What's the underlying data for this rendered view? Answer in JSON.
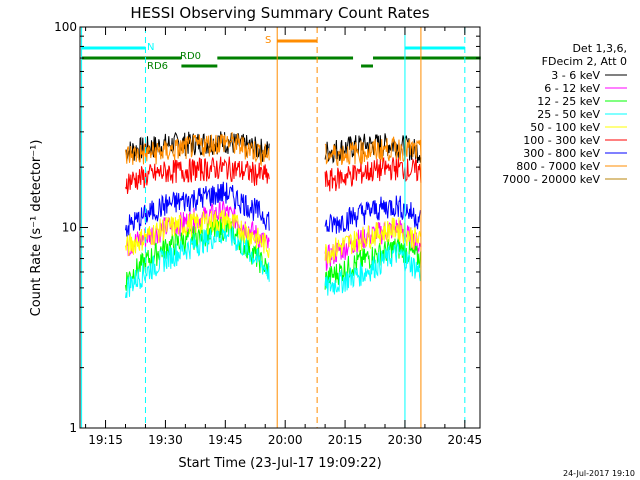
{
  "chart_data": {
    "type": "line",
    "title": "HESSI Observing Summary Count Rates",
    "xlabel": "Start Time (23-Jul-17 19:09:22)",
    "ylabel": "Count Rate (s⁻¹ detector⁻¹)",
    "yscale": "log",
    "ylim": [
      1,
      100
    ],
    "xlim": [
      "19:09",
      "20:49"
    ],
    "x_ticks": [
      "19:15",
      "19:30",
      "19:45",
      "20:00",
      "20:15",
      "20:30",
      "20:45"
    ],
    "y_ticks": [
      "1",
      "10",
      "100"
    ],
    "grid": false,
    "legend_position": "right",
    "legend_header": [
      "Det 1,3,6,",
      "FDecim 2, Att 0"
    ],
    "timestamp": "24-Jul-2017 19:10",
    "segments": [
      {
        "start": "19:20",
        "end": "19:56"
      },
      {
        "start": "20:10",
        "end": "20:34"
      }
    ],
    "series": [
      {
        "name": "3 - 6 keV",
        "color": "#000000",
        "values": [
          24,
          26,
          27,
          24,
          24,
          26,
          26,
          24
        ]
      },
      {
        "name": "6 - 12 keV",
        "color": "#ff00ff",
        "values": [
          8,
          10,
          12,
          8,
          7,
          9,
          10,
          8
        ]
      },
      {
        "name": "12 - 25 keV",
        "color": "#00ff00",
        "values": [
          5.5,
          8,
          10,
          6,
          5.5,
          7,
          8,
          7
        ]
      },
      {
        "name": "25 - 50 keV",
        "color": "#00ffff",
        "values": [
          5,
          7,
          9.5,
          6,
          5,
          6,
          7.5,
          6
        ]
      },
      {
        "name": "50 - 100 keV",
        "color": "#ffff00",
        "values": [
          8,
          10,
          11,
          8,
          7.5,
          9,
          10,
          8.5
        ]
      },
      {
        "name": "100 - 300 keV",
        "color": "#ff0000",
        "values": [
          17,
          19,
          20,
          18,
          17,
          19,
          20,
          19
        ]
      },
      {
        "name": "300 - 800 keV",
        "color": "#0000ff",
        "values": [
          10,
          13,
          15,
          11,
          10,
          12,
          13,
          11
        ]
      },
      {
        "name": "800 - 7000 keV",
        "color": "#ff8c00",
        "values": [
          23,
          24,
          27,
          23,
          23,
          24,
          25,
          24
        ]
      },
      {
        "name": "7000 - 20000 keV",
        "color": "#b8860b",
        "values": []
      }
    ],
    "series_x": [
      "19:20",
      "19:30",
      "19:45",
      "19:56",
      "20:10",
      "20:20",
      "20:28",
      "20:34"
    ],
    "flag_bars": [
      {
        "label": "N",
        "color": "#00ffff",
        "level": "N",
        "ranges": [
          [
            "19:09",
            "19:25"
          ],
          [
            "20:30",
            "20:45"
          ]
        ]
      },
      {
        "label": "RD0",
        "color": "#008000",
        "level": "RD0",
        "ranges": [
          [
            "19:09",
            "19:34"
          ],
          [
            "19:43",
            "20:17"
          ],
          [
            "20:22",
            "20:49"
          ]
        ]
      },
      {
        "label": "RD6",
        "color": "#008000",
        "level": "RD6",
        "ranges": [
          [
            "19:34",
            "19:43"
          ],
          [
            "20:19",
            "20:22"
          ]
        ]
      },
      {
        "label": "S",
        "color": "#ff8c00",
        "level": "S",
        "ranges": [
          [
            "19:58",
            "20:08"
          ]
        ]
      }
    ],
    "vertical_lines": [
      {
        "time": "19:09",
        "color": "#00ffff",
        "style": "solid"
      },
      {
        "time": "19:25",
        "color": "#00ffff",
        "style": "dashed"
      },
      {
        "time": "19:58",
        "color": "#ff8c00",
        "style": "solid"
      },
      {
        "time": "20:08",
        "color": "#ff8c00",
        "style": "dashed"
      },
      {
        "time": "20:30",
        "color": "#00ffff",
        "style": "solid"
      },
      {
        "time": "20:34",
        "color": "#ff8c00",
        "style": "solid"
      },
      {
        "time": "20:45",
        "color": "#00ffff",
        "style": "dashed"
      }
    ]
  }
}
